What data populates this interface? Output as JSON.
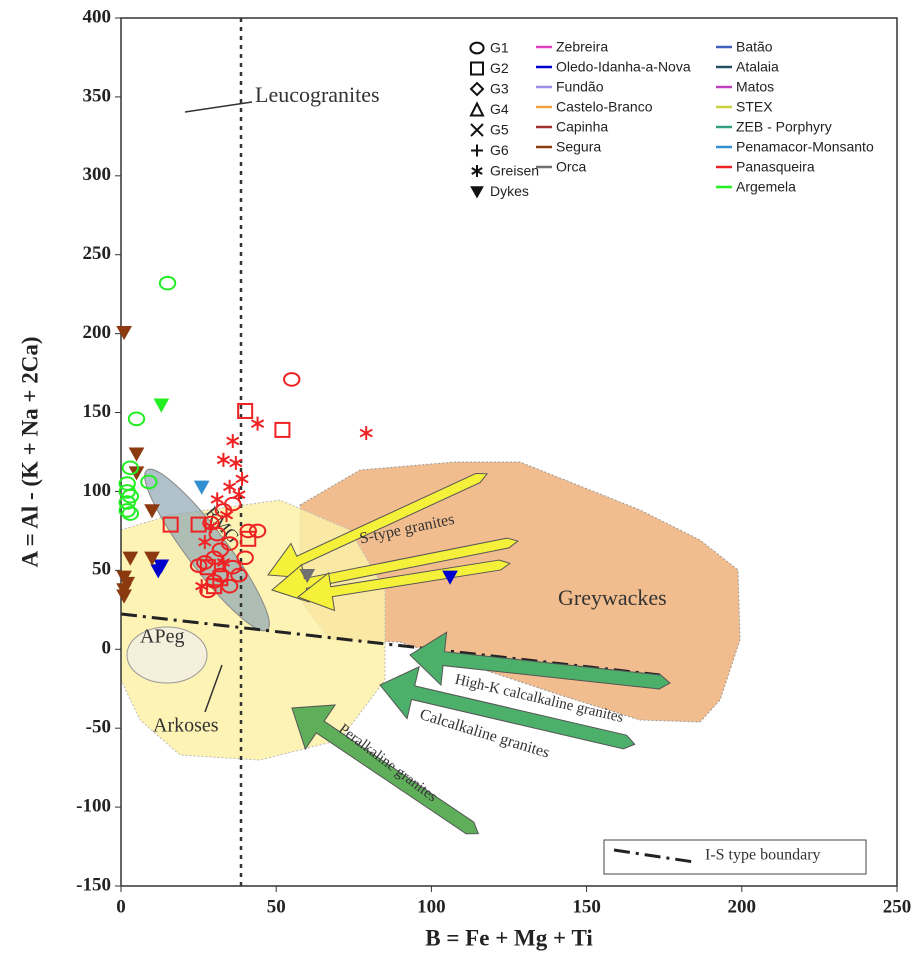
{
  "chart_data": {
    "type": "scatter",
    "x_label": "B = Fe + Mg + Ti",
    "y_label": "A = Al - (K + Na + 2Ca)",
    "xlim": [
      0,
      250
    ],
    "xticks": [
      0,
      50,
      100,
      150,
      200,
      250
    ],
    "ylim": [
      -150,
      400
    ],
    "yticks": [
      -150,
      -100,
      -50,
      0,
      50,
      100,
      150,
      200,
      250,
      300,
      350,
      400
    ],
    "annotations": {
      "leucogranites": "Leucogranites",
      "rmg": "RMG",
      "s_type": "S-type granites",
      "greywackes": "Greywackes",
      "apeg": "APeg",
      "arkoses": "Arkoses",
      "high_k": "High-K calcalkaline granites",
      "calcalkaline": "Calcalkaline granites",
      "peralkaline": "Peralkaline granites",
      "boundary": "I-S type boundary"
    },
    "shapes": [
      {
        "name": "G1",
        "marker": "circle"
      },
      {
        "name": "G2",
        "marker": "square"
      },
      {
        "name": "G3",
        "marker": "diamond"
      },
      {
        "name": "G4",
        "marker": "triangle"
      },
      {
        "name": "G5",
        "marker": "x"
      },
      {
        "name": "G6",
        "marker": "plus"
      },
      {
        "name": "Greisen",
        "marker": "asterisk"
      },
      {
        "name": "Dykes",
        "marker": "dyke"
      }
    ],
    "series": [
      {
        "name": "Zebreira",
        "color": "#e040c0",
        "x": [],
        "y": [],
        "markers": []
      },
      {
        "name": "Oledo-Idanha-a-Nova",
        "color": "#0000cc",
        "x": [
          12,
          13,
          106
        ],
        "y": [
          50,
          53,
          46
        ],
        "markers": [
          "dyke",
          "dyke",
          "dyke"
        ]
      },
      {
        "name": "Fundão",
        "color": "#9d8ee8",
        "x": [],
        "y": [],
        "markers": []
      },
      {
        "name": "Castelo-Branco",
        "color": "#f0a040",
        "x": [],
        "y": [],
        "markers": []
      },
      {
        "name": "Capinha",
        "color": "#a03030",
        "x": [],
        "y": [],
        "markers": []
      },
      {
        "name": "Segura",
        "color": "#8b3a10",
        "x": [
          1,
          5,
          5,
          10,
          3,
          10,
          1,
          2,
          1,
          1
        ],
        "y": [
          201,
          124,
          112,
          88,
          58,
          58,
          46,
          42,
          38,
          34
        ],
        "markers": [
          "dyke",
          "dyke",
          "dyke",
          "dyke",
          "dyke",
          "dyke",
          "dyke",
          "dyke",
          "dyke",
          "dyke"
        ]
      },
      {
        "name": "Orca",
        "color": "#707070",
        "x": [
          60
        ],
        "y": [
          47
        ],
        "markers": [
          "dyke"
        ]
      },
      {
        "name": "Batão",
        "color": "#4060c0",
        "x": [],
        "y": [],
        "markers": []
      },
      {
        "name": "Atalaia",
        "color": "#205060",
        "x": [],
        "y": [],
        "markers": []
      },
      {
        "name": "Matos",
        "color": "#c040c0",
        "x": [],
        "y": [],
        "markers": []
      },
      {
        "name": "STEX",
        "color": "#c8d040",
        "x": [],
        "y": [],
        "markers": []
      },
      {
        "name": "ZEB - Porphyry",
        "color": "#30a080",
        "x": [],
        "y": [],
        "markers": []
      },
      {
        "name": "Penamacor-Monsanto",
        "color": "#3090d0",
        "x": [
          26
        ],
        "y": [
          103
        ],
        "markers": [
          "dyke"
        ]
      },
      {
        "name": "Panasqueira",
        "color": "#ee2222",
        "x": [
          55,
          41,
          35,
          32,
          30,
          27,
          36,
          38,
          32,
          30,
          35,
          28,
          25,
          40,
          44,
          29,
          33,
          36,
          31,
          40,
          52,
          16,
          25,
          28,
          41,
          30,
          32,
          79,
          44,
          36,
          33,
          37,
          39,
          35,
          31,
          38,
          27,
          29,
          34,
          26,
          33
        ],
        "y": [
          171,
          75,
          67,
          63,
          58,
          55,
          52,
          47,
          47,
          43,
          40,
          37,
          53,
          58,
          75,
          80,
          88,
          92,
          73,
          151,
          139,
          79,
          79,
          52,
          70,
          40,
          45,
          137,
          143,
          132,
          120,
          118,
          108,
          103,
          95,
          98,
          68,
          78,
          85,
          40,
          55
        ],
        "markers": [
          "circle",
          "circle",
          "circle",
          "circle",
          "circle",
          "circle",
          "circle",
          "circle",
          "circle",
          "circle",
          "circle",
          "circle",
          "circle",
          "circle",
          "circle",
          "circle",
          "circle",
          "circle",
          "circle",
          "square",
          "square",
          "square",
          "square",
          "square",
          "square",
          "square",
          "square",
          "asterisk",
          "asterisk",
          "asterisk",
          "asterisk",
          "asterisk",
          "asterisk",
          "asterisk",
          "asterisk",
          "asterisk",
          "asterisk",
          "asterisk",
          "asterisk",
          "asterisk",
          "asterisk"
        ]
      },
      {
        "name": "Argemela",
        "color": "#22ee22",
        "x": [
          15,
          5,
          3,
          2,
          2,
          3,
          2,
          2,
          3,
          9,
          13
        ],
        "y": [
          232,
          146,
          115,
          105,
          100,
          97,
          93,
          88,
          86,
          106,
          155
        ],
        "markers": [
          "circle",
          "circle",
          "circle",
          "circle",
          "circle",
          "circle",
          "circle",
          "circle",
          "circle",
          "circle",
          "dyke"
        ]
      }
    ]
  }
}
